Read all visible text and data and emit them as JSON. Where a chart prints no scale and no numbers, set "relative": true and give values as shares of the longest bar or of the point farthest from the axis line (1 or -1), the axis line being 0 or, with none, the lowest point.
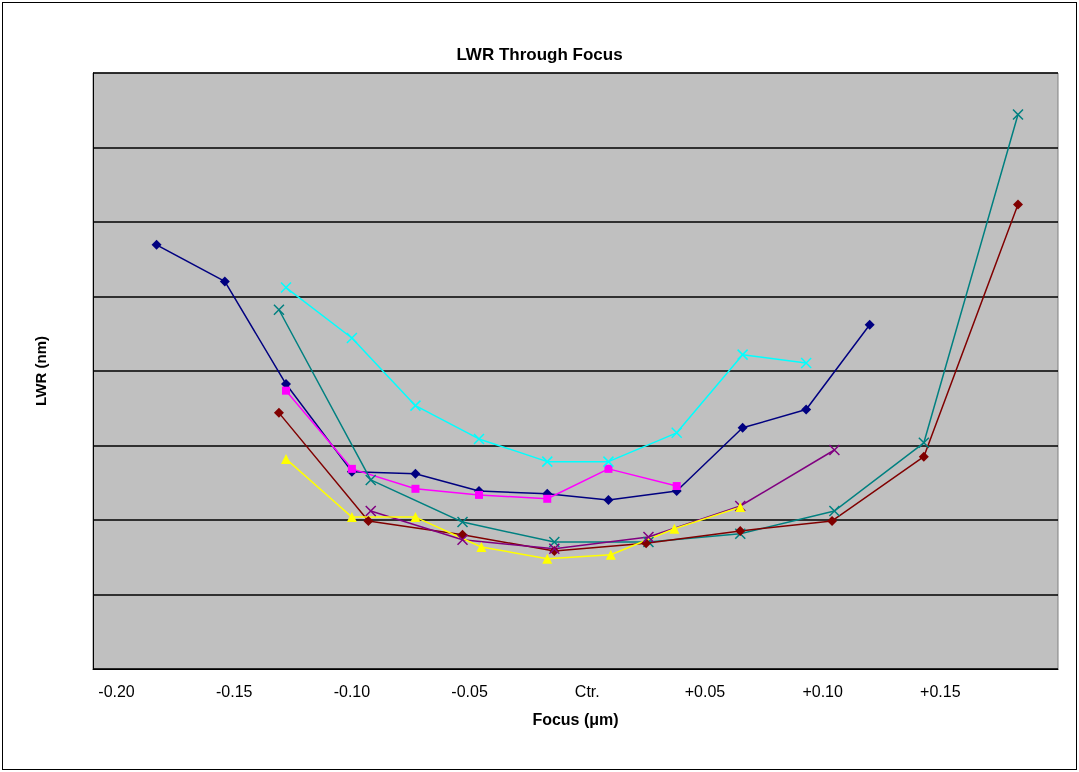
{
  "chart_data": {
    "type": "line",
    "title": "LWR Through Focus",
    "xlabel": "Focus (μm)",
    "ylabel": "LWR (nm)",
    "relative": true,
    "grid": "y",
    "xlim": [
      -0.21,
      0.2
    ],
    "xticks": [
      {
        "value": -0.2,
        "label": "-0.20"
      },
      -0.15,
      {
        "value": -0.1,
        "label": "-0.10"
      },
      -0.05,
      {
        "value": 0,
        "label": "Ctr."
      },
      {
        "value": 0.05,
        "label": "+0.05"
      },
      {
        "value": 0.1,
        "label": "+0.10"
      },
      {
        "value": 0.15,
        "label": "+0.15"
      }
    ],
    "series": [
      {
        "color": "#000080",
        "marker": "diamond",
        "x": [
          -0.183,
          -0.154,
          -0.128,
          -0.1,
          -0.073,
          -0.046,
          -0.017,
          0.009,
          0.038,
          0.066,
          0.093,
          0.12
        ],
        "values": [
          0.765,
          0.699,
          0.514,
          0.356,
          0.352,
          0.321,
          0.316,
          0.305,
          0.321,
          0.435,
          0.468,
          0.621
        ]
      },
      {
        "color": "#ff00ff",
        "marker": "square",
        "x": [
          -0.128,
          -0.1,
          -0.073,
          -0.046,
          -0.017,
          0.009,
          0.038
        ],
        "values": [
          0.502,
          0.361,
          0.325,
          0.314,
          0.307,
          0.361,
          0.33
        ]
      },
      {
        "color": "#00ffff",
        "marker": "cross",
        "x": [
          -0.128,
          -0.1,
          -0.073,
          -0.046,
          -0.017,
          0.009,
          0.038,
          0.066,
          0.093
        ],
        "values": [
          0.688,
          0.597,
          0.475,
          0.415,
          0.374,
          0.374,
          0.426,
          0.567,
          0.552
        ]
      },
      {
        "color": "#008080",
        "marker": "cross",
        "x": [
          -0.131,
          -0.092,
          -0.053,
          -0.014,
          0.026,
          0.065,
          0.105,
          0.143,
          0.183
        ],
        "values": [
          0.648,
          0.341,
          0.265,
          0.229,
          0.229,
          0.244,
          0.285,
          0.408,
          1
        ]
      },
      {
        "color": "#800000",
        "marker": "diamond",
        "x": [
          -0.131,
          -0.093,
          -0.053,
          -0.014,
          0.025,
          0.065,
          0.104,
          0.143,
          0.183
        ],
        "values": [
          0.462,
          0.267,
          0.242,
          0.213,
          0.227,
          0.249,
          0.267,
          0.383,
          0.838
        ]
      },
      {
        "color": "#800080",
        "marker": "cross",
        "x": [
          -0.092,
          -0.053,
          -0.014,
          0.026,
          0.065,
          0.105
        ],
        "values": [
          0.285,
          0.233,
          0.217,
          0.238,
          0.294,
          0.395
        ]
      },
      {
        "color": "#ffff00",
        "marker": "triangle",
        "x": [
          -0.128,
          -0.1,
          -0.073,
          -0.045,
          -0.017,
          0.01,
          0.037,
          0.065
        ],
        "values": [
          0.379,
          0.274,
          0.274,
          0.22,
          0.199,
          0.206,
          0.253,
          0.292
        ]
      }
    ]
  }
}
